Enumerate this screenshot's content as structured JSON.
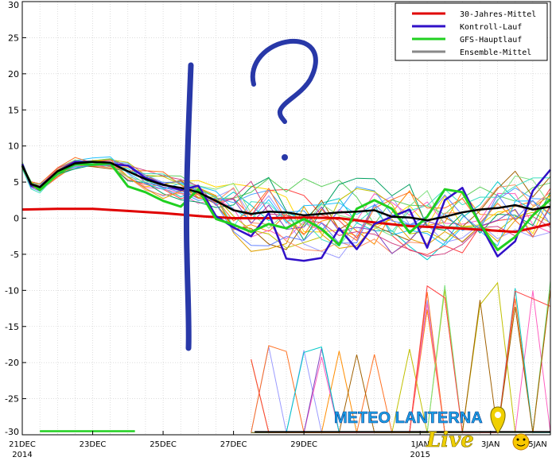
{
  "chart_data": {
    "type": "line",
    "title": "",
    "xlabel": "",
    "ylabel": "",
    "ylim": [
      -30,
      30
    ],
    "x_range_days": [
      0,
      15
    ],
    "grid": true,
    "y_ticks": [
      30,
      25,
      20,
      15,
      10,
      5,
      0,
      -5,
      -10,
      -15,
      -20,
      -25,
      -30
    ],
    "x_ticks": [
      {
        "day": 0,
        "label": "21DEC",
        "sub": "2014"
      },
      {
        "day": 2,
        "label": "23DEC",
        "sub": ""
      },
      {
        "day": 4,
        "label": "25DEC",
        "sub": ""
      },
      {
        "day": 6,
        "label": "27DEC",
        "sub": ""
      },
      {
        "day": 8,
        "label": "29DEC",
        "sub": ""
      },
      {
        "day": 11.3,
        "label": "1JAN",
        "sub": "2015"
      },
      {
        "day": 13.3,
        "label": "3JAN",
        "sub": ""
      },
      {
        "day": 15,
        "label": "5JAN",
        "sub": ""
      }
    ],
    "legend_position": "top-right",
    "series": [
      {
        "name": "30-Jahres-Mittel",
        "color": "#e00000",
        "width": 3,
        "x": [
          0,
          1,
          2,
          3,
          4,
          5,
          6,
          7,
          8,
          9,
          10,
          11,
          12,
          13,
          14,
          15
        ],
        "y": [
          1.2,
          1.3,
          1.3,
          1.0,
          0.7,
          0.3,
          0.0,
          0.0,
          0.1,
          0.0,
          -0.6,
          -1.1,
          -1.3,
          -1.6,
          -1.9,
          -0.8
        ]
      },
      {
        "name": "Kontroll-Lauf",
        "color": "#3010c8",
        "width": 2.5,
        "x": [
          0,
          0.25,
          0.5,
          1,
          1.5,
          2,
          2.5,
          3,
          3.5,
          4,
          4.5,
          5,
          5.5,
          6,
          6.5,
          7,
          7.5,
          8,
          8.5,
          9,
          9.5,
          10,
          10.5,
          11,
          11.5,
          12,
          12.5,
          13,
          13.5,
          14,
          14.5,
          15
        ],
        "y": [
          7.5,
          4.5,
          4.2,
          6.5,
          7.8,
          7.8,
          7.5,
          7.3,
          5.6,
          4.7,
          3.9,
          4.5,
          0.3,
          -1.3,
          -2.5,
          0.7,
          -5.6,
          -5.9,
          -5.5,
          -1.4,
          -4.3,
          -0.8,
          0.2,
          1.2,
          -4.1,
          2.5,
          4.2,
          -0.8,
          -5.3,
          -3.2,
          3.8,
          6.7
        ]
      },
      {
        "name": "GFS-Hauptlauf",
        "color": "#20d020",
        "width": 3,
        "x": [
          0,
          0.25,
          0.5,
          1,
          1.5,
          2,
          2.5,
          3,
          3.5,
          4,
          4.5,
          5,
          5.5,
          6,
          6.5,
          7,
          7.5,
          8,
          8.5,
          9,
          9.5,
          10,
          10.5,
          11,
          11.5,
          12,
          12.5,
          13,
          13.5,
          14,
          14.5,
          15
        ],
        "y": [
          7.2,
          4.8,
          3.9,
          6.2,
          7.5,
          7.4,
          7.6,
          4.4,
          3.6,
          2.4,
          1.6,
          4.0,
          -0.1,
          -0.9,
          -1.9,
          -0.8,
          -1.4,
          -0.1,
          -1.5,
          -3.7,
          1.3,
          2.5,
          1.3,
          -2.0,
          0.2,
          4.0,
          3.6,
          -0.8,
          -4.4,
          -2.6,
          0.4,
          2.6
        ]
      },
      {
        "name": "Ensemble-Mittel",
        "color": "#000000",
        "width": 2.5,
        "x": [
          0,
          0.25,
          0.5,
          1,
          1.5,
          2,
          2.5,
          3,
          3.5,
          4,
          4.5,
          5,
          5.5,
          6,
          6.5,
          7,
          7.5,
          8,
          8.5,
          9,
          9.5,
          10,
          10.5,
          11,
          11.5,
          12,
          12.5,
          13,
          13.5,
          14,
          14.5,
          15
        ],
        "y": [
          7.3,
          4.7,
          4.3,
          6.5,
          7.6,
          7.8,
          7.7,
          6.5,
          5.4,
          4.6,
          4.2,
          3.6,
          2.4,
          1.1,
          0.6,
          0.9,
          0.8,
          0.4,
          0.6,
          0.8,
          0.9,
          1.1,
          0.2,
          0.1,
          -0.3,
          0.2,
          0.8,
          1.2,
          1.4,
          1.8,
          1.2,
          1.6
        ]
      }
    ],
    "ensemble_members_count": 20,
    "legend": [
      "30-Jahres-Mittel",
      "Kontroll-Lauf",
      "GFS-Hauptlauf",
      "Ensemble-Mittel"
    ]
  },
  "watermark": {
    "text": "METEO LANTERNA",
    "script": "Live",
    "color": "#1aa0e8",
    "live_color": "#f0d000"
  },
  "annotations": {
    "mark": "?",
    "color": "#2838a8"
  }
}
